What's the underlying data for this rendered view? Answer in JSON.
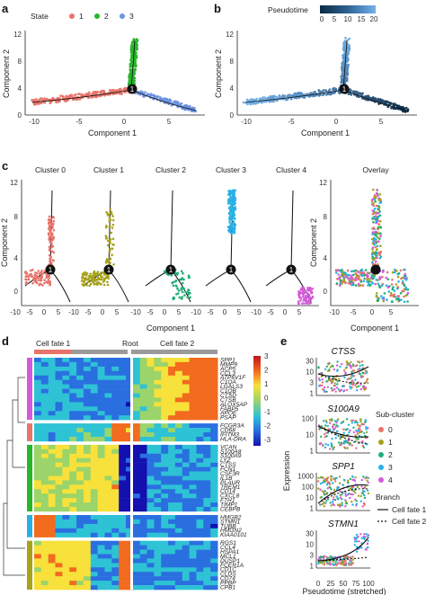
{
  "panels": {
    "a": "a",
    "b": "b",
    "c": "c",
    "d": "d",
    "e": "e"
  },
  "colors": {
    "state1": "#e8736a",
    "state2": "#27b52a",
    "state3": "#6e93e0",
    "c0": "#e8736a",
    "c1": "#a7a21c",
    "c2": "#1fae75",
    "c3": "#27b0e6",
    "c4": "#d35ad8",
    "pseudo_low": "#0c2a45",
    "pseudo_high": "#72b2ec"
  },
  "panel_a": {
    "legend_title": "State",
    "legend_items": [
      "1",
      "2",
      "3"
    ],
    "xlabel": "Component 1",
    "ylabel": "Component 2",
    "xticks": [
      "-10",
      "-5",
      "0",
      "5"
    ],
    "yticks": [
      "0",
      "4",
      "8",
      "12"
    ],
    "branch_label": "1"
  },
  "panel_b": {
    "legend_title": "Pseudotime",
    "legend_ticks": [
      "0",
      "5",
      "10",
      "15",
      "20"
    ],
    "xlabel": "Component 1",
    "ylabel": "Component 2",
    "xticks": [
      "-10",
      "-5",
      "0",
      "5"
    ],
    "yticks": [
      "0",
      "4",
      "8",
      "12"
    ],
    "branch_label": "1"
  },
  "panel_c": {
    "titles": [
      "Cluster 0",
      "Cluster 1",
      "Cluster 2",
      "Cluster 3",
      "Cluster 4"
    ],
    "overlay_title": "Overlay",
    "xlabel": "Component 1",
    "ylabel": "Component 2",
    "xticks": [
      "-10",
      "-5",
      "0",
      "5"
    ],
    "yticks": [
      "0",
      "4",
      "8",
      "12"
    ],
    "branch_label": "1"
  },
  "panel_d": {
    "cell_fate_1": "Cell fate 1",
    "root": "Root",
    "cell_fate_2": "Cell fate 2",
    "legend_ticks": [
      "3",
      "2",
      "1",
      "0",
      "-1",
      "-2",
      "-3"
    ],
    "groups": [
      {
        "color": "#d35ad8",
        "genes": [
          "SPP1",
          "MMP9",
          "ACP5",
          "CCL3",
          "ATP6V1F",
          "C1QA",
          "LGALS3",
          "C1QB",
          "CTSD",
          "CTSB",
          "ALOX5AP",
          "FABP5",
          "APOE",
          "PSAP"
        ]
      },
      {
        "color": "#e8736a",
        "genes": [
          "FCGR3A",
          "CD68",
          "IFITM3",
          "HLA-DRA"
        ]
      },
      {
        "color": "#27b52a",
        "genes": [
          "VCAN",
          "S100A8",
          "S100A9",
          "LYZ",
          "CTSS",
          "FCN1",
          "CSF3R",
          "IL1B",
          "PLAUR",
          "TREM1",
          "CD14",
          "CXCL8",
          "FTH1",
          "TIMP1",
          "CEBPB"
        ]
      },
      {
        "color": "#27b0e6",
        "genes": [
          "HMGB2",
          "STMN1",
          "TUBB",
          "HMGN2",
          "KIAA0101"
        ]
      },
      {
        "color": "#a7a21c",
        "genes": [
          "RGS1",
          "CCL4",
          "HSPA1",
          "MCL1",
          "DUSP1",
          "FCER1A",
          "CD1C",
          "CLDS",
          "CD74",
          "PPBP",
          "CPB1"
        ]
      }
    ]
  },
  "panel_e": {
    "genes": [
      "CTSS",
      "S100A9",
      "SPP1",
      "STMN1"
    ],
    "ylabel": "Expression",
    "xlabel": "Pseudotime (stretched)",
    "xticks": [
      "0",
      "25",
      "50",
      "75",
      "100"
    ],
    "sub_cluster_title": "Sub-cluster",
    "sub_clusters": [
      "0",
      "1",
      "2",
      "3",
      "4"
    ],
    "branch_title": "Branch",
    "branches": [
      "Cell fate 1",
      "Cell fate 2"
    ],
    "yticks": [
      [
        "1",
        "3",
        "10",
        "30"
      ],
      [
        "1",
        "10",
        "100"
      ],
      [
        "1",
        "10",
        "100",
        "1000"
      ],
      [
        "1",
        "3",
        "10",
        "30"
      ]
    ]
  }
}
